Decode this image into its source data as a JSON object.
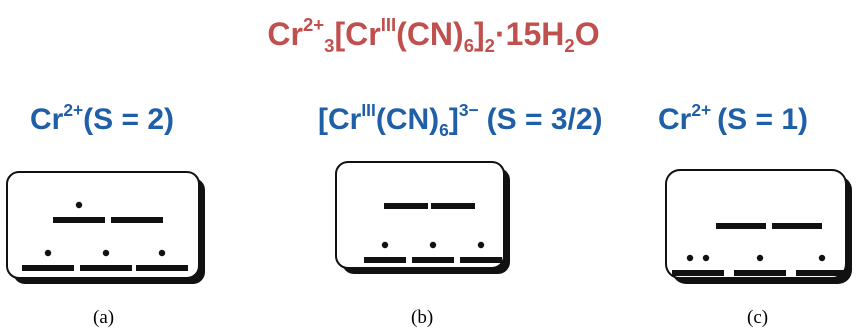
{
  "colors": {
    "formula": "#c0504d",
    "heading": "#1f5fa7",
    "ink": "#111111",
    "panel_fill": "#ffffff",
    "panel_shadow": "#111111"
  },
  "formula": {
    "part_cr": "Cr",
    "part_cr_charge": "2+",
    "part_cr_count": "3",
    "part_bracket_open": "[Cr",
    "part_cr_ox": "III",
    "part_cn": "(CN)",
    "part_cn_count": "6",
    "part_bracket_close": "]",
    "part_complex_count": "2",
    "part_water": "·15H",
    "part_water_h_count": "2",
    "part_o": "O"
  },
  "headings": {
    "a": {
      "element": "Cr",
      "charge": "2+",
      "spin": "(S = 2)"
    },
    "b": {
      "open": "[Cr",
      "ox": "III",
      "cn": "(CN)",
      "cn_count": "6",
      "close": "]",
      "charge": "3−",
      "spin": "(S = 3/2)"
    },
    "c": {
      "element": "Cr",
      "charge": "2+",
      "spin": "(S = 1)"
    }
  },
  "panels": [
    {
      "label": "(a)",
      "upper_level": {
        "orbitals": 2,
        "electrons": [
          1,
          0
        ]
      },
      "lower_level": {
        "orbitals": 3,
        "electrons": [
          1,
          1,
          1
        ]
      }
    },
    {
      "label": "(b)",
      "upper_level": {
        "orbitals": 2,
        "electrons": [
          0,
          0
        ]
      },
      "lower_level": {
        "orbitals": 3,
        "electrons": [
          1,
          1,
          1
        ]
      }
    },
    {
      "label": "(c)",
      "upper_level": {
        "orbitals": 2,
        "electrons": [
          0,
          0
        ]
      },
      "lower_level": {
        "orbitals": 3,
        "electrons": [
          2,
          1,
          1
        ]
      }
    }
  ]
}
